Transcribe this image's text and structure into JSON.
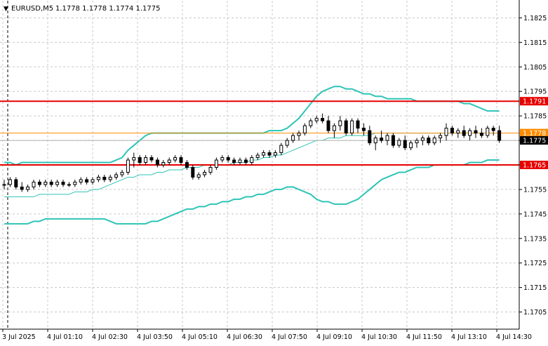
{
  "header": {
    "symbol": "EURUSD,M5",
    "ohlc": "1.1778 1.1778 1.1774 1.1775",
    "arrow": "▼"
  },
  "colors": {
    "background": "#ffffff",
    "grid": "#c8c8c8",
    "axis": "#000000",
    "candle": "#000000",
    "bollinger": "#2ec4b6",
    "moving_average": "#2ec4b6",
    "level_line": "#e60000",
    "ask_line": "#ff8c00",
    "bid_line": "#b0b0b0",
    "price_label_bg": "#000000",
    "level_label_bg": "#e60000"
  },
  "chart_data": {
    "type": "candlestick",
    "instrument": "EURUSD",
    "timeframe": "M5",
    "ylim": [
      1.1698,
      1.1832
    ],
    "y_ticks": [
      "1.1825",
      "1.1815",
      "1.1805",
      "1.1795",
      "1.1785",
      "1.1775",
      "1.1765",
      "1.1755",
      "1.1745",
      "1.1735",
      "1.1725",
      "1.1715",
      "1.1705"
    ],
    "x_ticks": [
      "3 Jul 2025",
      "4 Jul 01:10",
      "4 Jul 02:30",
      "4 Jul 03:50",
      "4 Jul 05:10",
      "4 Jul 06:30",
      "4 Jul 07:50",
      "4 Jul 09:10",
      "4 Jul 10:30",
      "4 Jul 11:50",
      "4 Jul 13:10",
      "4 Jul 14:30"
    ],
    "grid": true,
    "horizontal_levels": [
      {
        "label": "1.1791",
        "value": 1.1791
      },
      {
        "label": "1.1765",
        "value": 1.1765
      }
    ],
    "price_tags": [
      {
        "label": "1.1778",
        "value": 1.1778,
        "kind": "ask"
      },
      {
        "label": "1.1775",
        "value": 1.1775,
        "kind": "bid"
      }
    ],
    "candles": [
      [
        1.1757,
        1.1759,
        1.1755,
        1.1757
      ],
      [
        1.1757,
        1.176,
        1.1756,
        1.1759
      ],
      [
        1.1759,
        1.176,
        1.1755,
        1.1756
      ],
      [
        1.1756,
        1.1758,
        1.1754,
        1.1755
      ],
      [
        1.1755,
        1.1757,
        1.1754,
        1.1756
      ],
      [
        1.1756,
        1.1759,
        1.1755,
        1.1758
      ],
      [
        1.1758,
        1.1759,
        1.1756,
        1.1757
      ],
      [
        1.1757,
        1.1759,
        1.1756,
        1.1758
      ],
      [
        1.1758,
        1.1759,
        1.1756,
        1.1757
      ],
      [
        1.1757,
        1.1759,
        1.1756,
        1.1758
      ],
      [
        1.1758,
        1.1759,
        1.1756,
        1.1757
      ],
      [
        1.1757,
        1.1758,
        1.1756,
        1.1757
      ],
      [
        1.1757,
        1.1759,
        1.1756,
        1.1758
      ],
      [
        1.1758,
        1.176,
        1.1757,
        1.1759
      ],
      [
        1.1759,
        1.176,
        1.1757,
        1.1758
      ],
      [
        1.1758,
        1.176,
        1.1757,
        1.1759
      ],
      [
        1.1759,
        1.1761,
        1.1758,
        1.176
      ],
      [
        1.176,
        1.1761,
        1.1758,
        1.1759
      ],
      [
        1.1759,
        1.1761,
        1.1758,
        1.176
      ],
      [
        1.176,
        1.1762,
        1.1759,
        1.1761
      ],
      [
        1.1761,
        1.1763,
        1.176,
        1.1762
      ],
      [
        1.1762,
        1.1768,
        1.1761,
        1.1767
      ],
      [
        1.1767,
        1.177,
        1.1764,
        1.1768
      ],
      [
        1.1768,
        1.1769,
        1.1765,
        1.1766
      ],
      [
        1.1766,
        1.1769,
        1.1765,
        1.1768
      ],
      [
        1.1768,
        1.1769,
        1.1766,
        1.1767
      ],
      [
        1.1767,
        1.1768,
        1.1764,
        1.1765
      ],
      [
        1.1765,
        1.1767,
        1.1764,
        1.1766
      ],
      [
        1.1766,
        1.1768,
        1.1765,
        1.1767
      ],
      [
        1.1767,
        1.1769,
        1.1766,
        1.1768
      ],
      [
        1.1768,
        1.1769,
        1.1765,
        1.1766
      ],
      [
        1.1766,
        1.1767,
        1.1763,
        1.1764
      ],
      [
        1.1764,
        1.1765,
        1.1759,
        1.176
      ],
      [
        1.176,
        1.1762,
        1.1759,
        1.1761
      ],
      [
        1.1761,
        1.1763,
        1.176,
        1.1762
      ],
      [
        1.1762,
        1.1765,
        1.1761,
        1.1764
      ],
      [
        1.1764,
        1.1768,
        1.1763,
        1.1767
      ],
      [
        1.1767,
        1.1769,
        1.1766,
        1.1768
      ],
      [
        1.1768,
        1.1769,
        1.1766,
        1.1767
      ],
      [
        1.1767,
        1.1768,
        1.1765,
        1.1766
      ],
      [
        1.1766,
        1.1768,
        1.1765,
        1.1767
      ],
      [
        1.1767,
        1.1768,
        1.1765,
        1.1766
      ],
      [
        1.1766,
        1.1769,
        1.1765,
        1.1768
      ],
      [
        1.1768,
        1.177,
        1.1767,
        1.1769
      ],
      [
        1.1769,
        1.1771,
        1.1768,
        1.177
      ],
      [
        1.177,
        1.1771,
        1.1768,
        1.1769
      ],
      [
        1.1769,
        1.1771,
        1.1768,
        1.177
      ],
      [
        1.177,
        1.1774,
        1.1769,
        1.1773
      ],
      [
        1.1773,
        1.1776,
        1.1772,
        1.1775
      ],
      [
        1.1775,
        1.1778,
        1.1774,
        1.1777
      ],
      [
        1.1777,
        1.1779,
        1.1775,
        1.1778
      ],
      [
        1.1778,
        1.1782,
        1.1777,
        1.1781
      ],
      [
        1.1781,
        1.1784,
        1.178,
        1.1783
      ],
      [
        1.1783,
        1.1785,
        1.1782,
        1.1784
      ],
      [
        1.1784,
        1.1786,
        1.1782,
        1.1783
      ],
      [
        1.1783,
        1.1785,
        1.1778,
        1.1779
      ],
      [
        1.1779,
        1.1782,
        1.1776,
        1.1781
      ],
      [
        1.1781,
        1.1785,
        1.1779,
        1.1783
      ],
      [
        1.1783,
        1.1784,
        1.1777,
        1.1778
      ],
      [
        1.1778,
        1.1784,
        1.1777,
        1.1783
      ],
      [
        1.1783,
        1.1784,
        1.1778,
        1.178
      ],
      [
        1.178,
        1.1782,
        1.1777,
        1.1779
      ],
      [
        1.1779,
        1.1781,
        1.1773,
        1.1774
      ],
      [
        1.1774,
        1.1777,
        1.1771,
        1.1776
      ],
      [
        1.1776,
        1.1779,
        1.1774,
        1.1775
      ],
      [
        1.1775,
        1.1778,
        1.1773,
        1.1777
      ],
      [
        1.1777,
        1.1778,
        1.1772,
        1.1773
      ],
      [
        1.1773,
        1.1776,
        1.1772,
        1.1775
      ],
      [
        1.1775,
        1.1777,
        1.1771,
        1.1772
      ],
      [
        1.1772,
        1.1775,
        1.1771,
        1.1774
      ],
      [
        1.1774,
        1.1776,
        1.1772,
        1.1775
      ],
      [
        1.1775,
        1.1777,
        1.1773,
        1.1776
      ],
      [
        1.1776,
        1.1777,
        1.1773,
        1.1774
      ],
      [
        1.1774,
        1.1777,
        1.1773,
        1.1776
      ],
      [
        1.1776,
        1.1778,
        1.1774,
        1.1777
      ],
      [
        1.1777,
        1.1782,
        1.1775,
        1.178
      ],
      [
        1.178,
        1.1781,
        1.1777,
        1.1778
      ],
      [
        1.1778,
        1.178,
        1.1776,
        1.1779
      ],
      [
        1.1779,
        1.1781,
        1.1776,
        1.1777
      ],
      [
        1.1777,
        1.178,
        1.1775,
        1.1779
      ],
      [
        1.1779,
        1.1781,
        1.1776,
        1.1778
      ],
      [
        1.1778,
        1.178,
        1.1776,
        1.1777
      ],
      [
        1.1777,
        1.1781,
        1.1776,
        1.178
      ],
      [
        1.178,
        1.1781,
        1.1777,
        1.1779
      ],
      [
        1.1779,
        1.1781,
        1.1774,
        1.1775
      ]
    ],
    "bollinger_upper": [
      1.1766,
      1.1766,
      1.1765,
      1.1766,
      1.1766,
      1.1766,
      1.1766,
      1.1766,
      1.1766,
      1.1766,
      1.1766,
      1.1766,
      1.1766,
      1.1766,
      1.1766,
      1.1766,
      1.1766,
      1.1766,
      1.1766,
      1.1767,
      1.1768,
      1.1771,
      1.1773,
      1.1775,
      1.1777,
      1.1778,
      1.1778,
      1.1778,
      1.1778,
      1.1778,
      1.1778,
      1.1778,
      1.1778,
      1.1778,
      1.1778,
      1.1778,
      1.1778,
      1.1778,
      1.1778,
      1.1778,
      1.1778,
      1.1778,
      1.1778,
      1.1778,
      1.1778,
      1.1779,
      1.1779,
      1.1779,
      1.178,
      1.1782,
      1.1784,
      1.1787,
      1.179,
      1.1793,
      1.1795,
      1.1796,
      1.1797,
      1.1797,
      1.1796,
      1.1796,
      1.1795,
      1.1794,
      1.1794,
      1.1793,
      1.1793,
      1.1792,
      1.1792,
      1.1792,
      1.1792,
      1.1792,
      1.1791,
      1.1791,
      1.1791,
      1.1791,
      1.1791,
      1.1791,
      1.1791,
      1.1791,
      1.179,
      1.179,
      1.1789,
      1.1788,
      1.1787,
      1.1787,
      1.1787
    ],
    "bollinger_middle": [
      1.1752,
      1.1752,
      1.1752,
      1.1752,
      1.1752,
      1.1752,
      1.1753,
      1.1753,
      1.1753,
      1.1753,
      1.1753,
      1.1753,
      1.1754,
      1.1754,
      1.1754,
      1.1755,
      1.1755,
      1.1756,
      1.1757,
      1.1758,
      1.1759,
      1.176,
      1.176,
      1.1761,
      1.1761,
      1.1761,
      1.1762,
      1.1762,
      1.1763,
      1.1763,
      1.1763,
      1.1764,
      1.1764,
      1.1764,
      1.1765,
      1.1765,
      1.1765,
      1.1765,
      1.1765,
      1.1766,
      1.1766,
      1.1766,
      1.1767,
      1.1767,
      1.1768,
      1.1768,
      1.1769,
      1.1769,
      1.177,
      1.1771,
      1.1772,
      1.1773,
      1.1774,
      1.1775,
      1.1775,
      1.1776,
      1.1776,
      1.1776,
      1.1777,
      1.1777,
      1.1777,
      1.1777,
      1.1777,
      1.1778,
      1.1778,
      1.1778,
      1.1778,
      1.1778,
      1.1778,
      1.1778,
      1.1778,
      1.1778,
      1.1778,
      1.1778,
      1.1778,
      1.1778,
      1.1778,
      1.1778,
      1.1778,
      1.1778,
      1.1778,
      1.1778,
      1.1778,
      1.1778,
      1.1778
    ],
    "bollinger_lower": [
      1.1741,
      1.1741,
      1.1741,
      1.1741,
      1.1741,
      1.1742,
      1.1742,
      1.1743,
      1.1743,
      1.1743,
      1.1743,
      1.1743,
      1.1743,
      1.1743,
      1.1743,
      1.1743,
      1.1743,
      1.1743,
      1.1742,
      1.1741,
      1.1741,
      1.1741,
      1.1741,
      1.1741,
      1.1741,
      1.1742,
      1.1742,
      1.1743,
      1.1744,
      1.1745,
      1.1746,
      1.1747,
      1.1747,
      1.1748,
      1.1748,
      1.1749,
      1.1749,
      1.175,
      1.175,
      1.1751,
      1.1751,
      1.1752,
      1.1752,
      1.1753,
      1.1753,
      1.1754,
      1.1755,
      1.1755,
      1.1756,
      1.1756,
      1.1755,
      1.1754,
      1.1753,
      1.1751,
      1.175,
      1.175,
      1.1749,
      1.1749,
      1.1749,
      1.175,
      1.1751,
      1.1753,
      1.1755,
      1.1757,
      1.1759,
      1.176,
      1.1761,
      1.1762,
      1.1762,
      1.1763,
      1.1764,
      1.1764,
      1.1764,
      1.1765,
      1.1765,
      1.1765,
      1.1765,
      1.1765,
      1.1765,
      1.1766,
      1.1766,
      1.1766,
      1.1767,
      1.1767,
      1.1767
    ]
  }
}
